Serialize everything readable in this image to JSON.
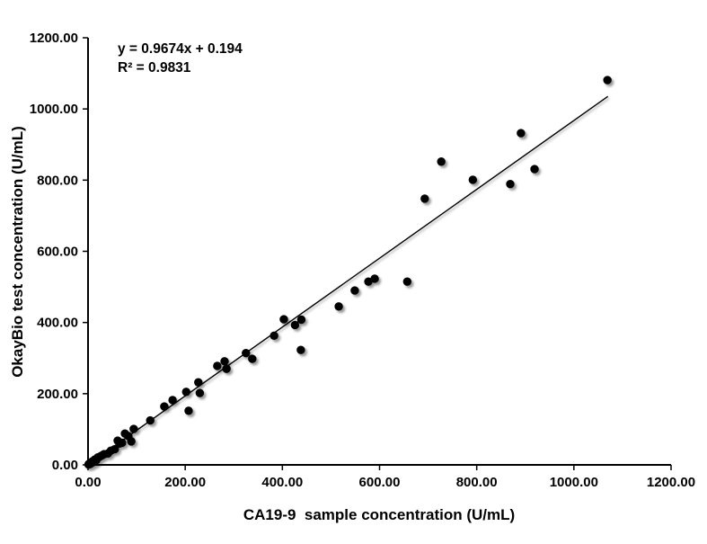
{
  "chart_data": {
    "type": "scatter",
    "title": "",
    "xlabel": "CA19-9  sample concentration (U/mL)",
    "ylabel": "OkayBio test concentration (U/mL)",
    "xlim": [
      0,
      1200
    ],
    "ylim": [
      0,
      1200
    ],
    "x_ticks": [
      0,
      200,
      400,
      600,
      800,
      1000,
      1200
    ],
    "y_ticks": [
      0,
      200,
      400,
      600,
      800,
      1000,
      1200
    ],
    "tick_decimals": 2,
    "grid": false,
    "legend": "none",
    "point_color": "#000000",
    "line_color": "#000000",
    "annotations": {
      "equation": "y = 0.9674x + 0.194",
      "r_squared": "R² = 0.9831"
    },
    "trendline": {
      "slope": 0.9674,
      "intercept": 0.194,
      "x_start": 0,
      "x_end": 1070
    },
    "points": [
      [
        1,
        1
      ],
      [
        2,
        3
      ],
      [
        4,
        2
      ],
      [
        5,
        6
      ],
      [
        7,
        5
      ],
      [
        9,
        10
      ],
      [
        12,
        8
      ],
      [
        14,
        15
      ],
      [
        17,
        13
      ],
      [
        20,
        21
      ],
      [
        24,
        23
      ],
      [
        28,
        26
      ],
      [
        33,
        30
      ],
      [
        41,
        32
      ],
      [
        47,
        40
      ],
      [
        55,
        44
      ],
      [
        61,
        68
      ],
      [
        65,
        60
      ],
      [
        70,
        62
      ],
      [
        76,
        88
      ],
      [
        83,
        81
      ],
      [
        89,
        66
      ],
      [
        94,
        101
      ],
      [
        128,
        125
      ],
      [
        157,
        164
      ],
      [
        174,
        182
      ],
      [
        202,
        205
      ],
      [
        207,
        152
      ],
      [
        227,
        232
      ],
      [
        230,
        202
      ],
      [
        266,
        278
      ],
      [
        281,
        291
      ],
      [
        285,
        270
      ],
      [
        325,
        314
      ],
      [
        338,
        298
      ],
      [
        383,
        363
      ],
      [
        403,
        409
      ],
      [
        426,
        393
      ],
      [
        439,
        408
      ],
      [
        438,
        323
      ],
      [
        516,
        445
      ],
      [
        549,
        490
      ],
      [
        577,
        515
      ],
      [
        590,
        523
      ],
      [
        657,
        515
      ],
      [
        693,
        748
      ],
      [
        727,
        852
      ],
      [
        792,
        801
      ],
      [
        869,
        789
      ],
      [
        891,
        932
      ],
      [
        919,
        831
      ],
      [
        1069,
        1081
      ]
    ]
  }
}
